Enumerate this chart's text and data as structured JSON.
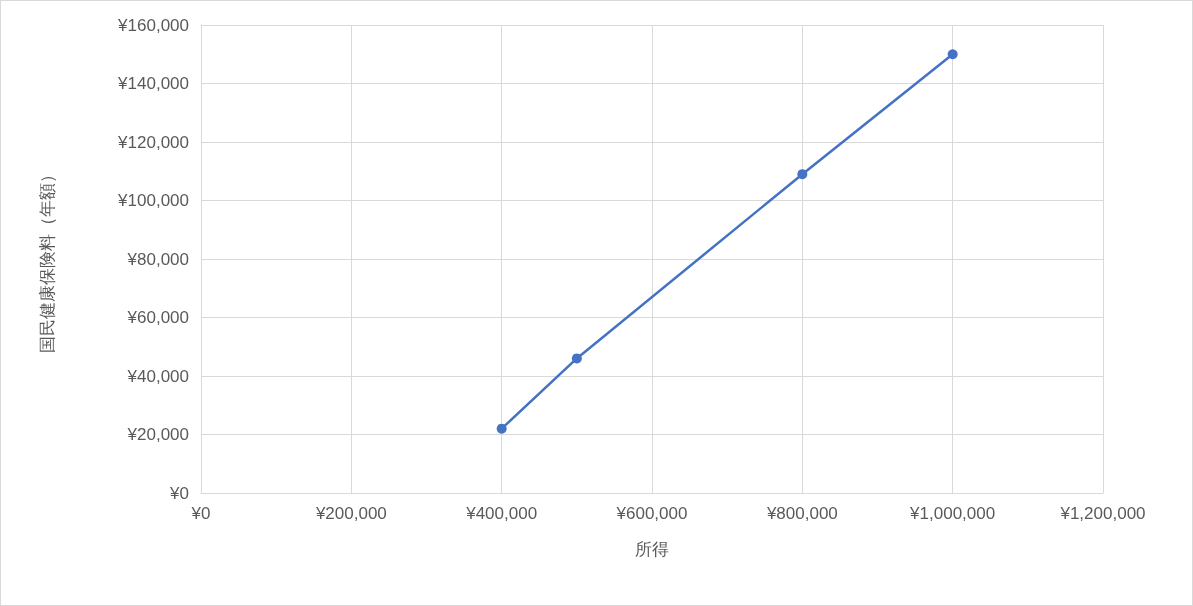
{
  "chart_data": {
    "type": "line",
    "xlabel": "所得",
    "ylabel": "国民健康保険料（年額）",
    "x": [
      400000,
      500000,
      800000,
      1000000
    ],
    "series": [
      {
        "color": "#4472c4",
        "values": [
          22000,
          46000,
          109000,
          150000
        ]
      }
    ],
    "xlim": [
      0,
      1200000
    ],
    "xticks": [
      {
        "value": 0,
        "label": "¥0"
      },
      {
        "value": 200000,
        "label": "¥200,000"
      },
      {
        "value": 400000,
        "label": "¥400,000"
      },
      {
        "value": 600000,
        "label": "¥600,000"
      },
      {
        "value": 800000,
        "label": "¥800,000"
      },
      {
        "value": 1000000,
        "label": "¥1,000,000"
      },
      {
        "value": 1200000,
        "label": "¥1,200,000"
      }
    ],
    "ylim": [
      0,
      160000
    ],
    "yticks": [
      {
        "value": 0,
        "label": "¥0"
      },
      {
        "value": 20000,
        "label": "¥20,000"
      },
      {
        "value": 40000,
        "label": "¥40,000"
      },
      {
        "value": 60000,
        "label": "¥60,000"
      },
      {
        "value": 80000,
        "label": "¥80,000"
      },
      {
        "value": 100000,
        "label": "¥100,000"
      },
      {
        "value": 120000,
        "label": "¥120,000"
      },
      {
        "value": 140000,
        "label": "¥140,000"
      },
      {
        "value": 160000,
        "label": "¥160,000"
      }
    ],
    "grid": true,
    "marker": "circle",
    "line_style": "solid"
  }
}
